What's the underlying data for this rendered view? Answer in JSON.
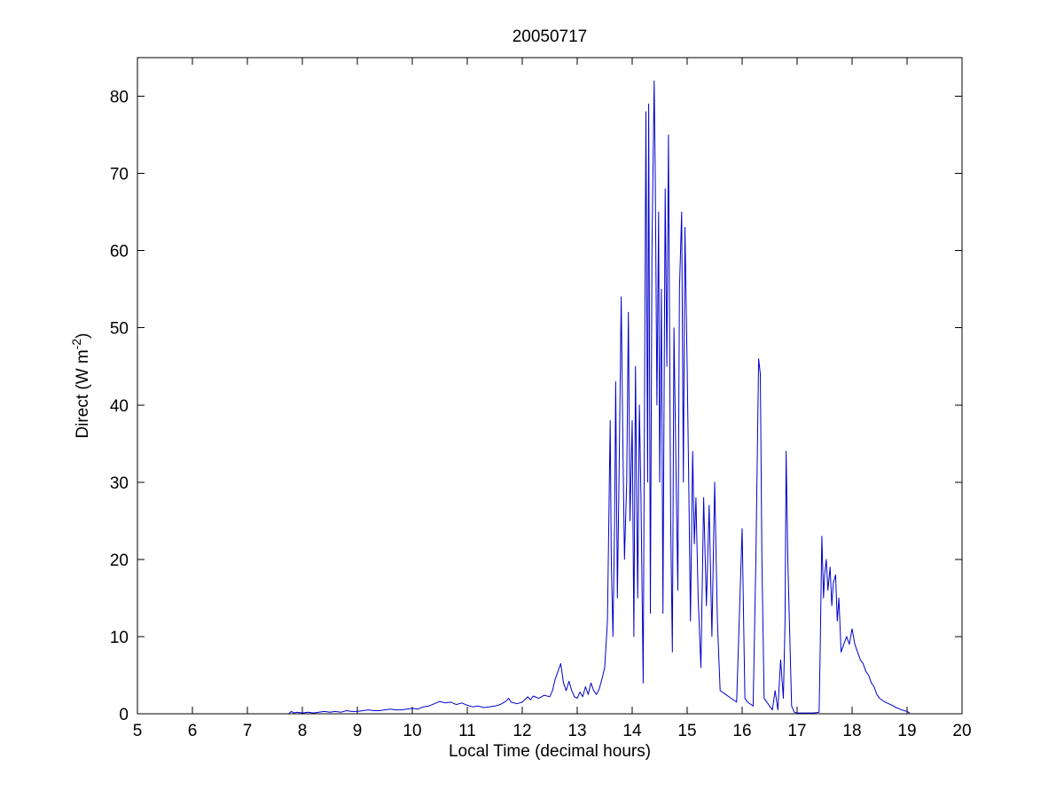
{
  "page": {
    "background_color": "#ffffff"
  },
  "chart_data": {
    "type": "line",
    "title": "20050717",
    "xlabel": "Local Time (decimal hours)",
    "ylabel": "Direct (W m⁻²)",
    "ylabel_parts": {
      "pre": "Direct (W m",
      "sup": "-2",
      "post": ")"
    },
    "xlim": [
      5,
      20
    ],
    "ylim": [
      0,
      85
    ],
    "xticks": [
      5,
      6,
      7,
      8,
      9,
      10,
      11,
      12,
      13,
      14,
      15,
      16,
      17,
      18,
      19,
      20
    ],
    "yticks": [
      0,
      10,
      20,
      30,
      40,
      50,
      60,
      70,
      80
    ],
    "grid": false,
    "legend": "none",
    "line_color": "#0000CC",
    "axis_color": "#000000",
    "points": [
      [
        7.75,
        0
      ],
      [
        7.8,
        0.3
      ],
      [
        7.85,
        0.1
      ],
      [
        7.9,
        0.2
      ],
      [
        8.0,
        0.1
      ],
      [
        8.1,
        0.2
      ],
      [
        8.2,
        0.1
      ],
      [
        8.3,
        0.2
      ],
      [
        8.4,
        0.3
      ],
      [
        8.5,
        0.2
      ],
      [
        8.6,
        0.3
      ],
      [
        8.7,
        0.2
      ],
      [
        8.8,
        0.4
      ],
      [
        8.9,
        0.3
      ],
      [
        9.0,
        0.3
      ],
      [
        9.1,
        0.4
      ],
      [
        9.2,
        0.5
      ],
      [
        9.3,
        0.4
      ],
      [
        9.4,
        0.4
      ],
      [
        9.5,
        0.5
      ],
      [
        9.6,
        0.6
      ],
      [
        9.7,
        0.5
      ],
      [
        9.8,
        0.5
      ],
      [
        9.9,
        0.6
      ],
      [
        10.0,
        0.7
      ],
      [
        10.1,
        0.6
      ],
      [
        10.2,
        0.9
      ],
      [
        10.3,
        1.0
      ],
      [
        10.4,
        1.3
      ],
      [
        10.5,
        1.6
      ],
      [
        10.6,
        1.4
      ],
      [
        10.7,
        1.5
      ],
      [
        10.8,
        1.2
      ],
      [
        10.9,
        1.4
      ],
      [
        11.0,
        1.1
      ],
      [
        11.1,
        0.9
      ],
      [
        11.2,
        1.0
      ],
      [
        11.3,
        0.8
      ],
      [
        11.4,
        0.9
      ],
      [
        11.5,
        1.0
      ],
      [
        11.6,
        1.2
      ],
      [
        11.7,
        1.6
      ],
      [
        11.75,
        2.0
      ],
      [
        11.8,
        1.5
      ],
      [
        11.9,
        1.3
      ],
      [
        12.0,
        1.5
      ],
      [
        12.1,
        2.2
      ],
      [
        12.15,
        1.8
      ],
      [
        12.2,
        2.3
      ],
      [
        12.3,
        2.0
      ],
      [
        12.4,
        2.4
      ],
      [
        12.5,
        2.2
      ],
      [
        12.55,
        3.0
      ],
      [
        12.6,
        4.5
      ],
      [
        12.65,
        5.5
      ],
      [
        12.7,
        6.5
      ],
      [
        12.75,
        4.0
      ],
      [
        12.8,
        3.0
      ],
      [
        12.85,
        4.2
      ],
      [
        12.9,
        3.0
      ],
      [
        12.95,
        2.2
      ],
      [
        13.0,
        2.0
      ],
      [
        13.05,
        2.8
      ],
      [
        13.1,
        2.2
      ],
      [
        13.15,
        3.5
      ],
      [
        13.2,
        2.5
      ],
      [
        13.25,
        4.0
      ],
      [
        13.3,
        3.0
      ],
      [
        13.35,
        2.5
      ],
      [
        13.4,
        3.2
      ],
      [
        13.45,
        4.5
      ],
      [
        13.5,
        6.0
      ],
      [
        13.55,
        12
      ],
      [
        13.6,
        38
      ],
      [
        13.62,
        20
      ],
      [
        13.65,
        10
      ],
      [
        13.68,
        25
      ],
      [
        13.7,
        43
      ],
      [
        13.73,
        15
      ],
      [
        13.76,
        30
      ],
      [
        13.8,
        54
      ],
      [
        13.83,
        35
      ],
      [
        13.86,
        20
      ],
      [
        13.9,
        30
      ],
      [
        13.93,
        52
      ],
      [
        13.96,
        25
      ],
      [
        14.0,
        38
      ],
      [
        14.03,
        10
      ],
      [
        14.06,
        45
      ],
      [
        14.1,
        15
      ],
      [
        14.13,
        40
      ],
      [
        14.16,
        28
      ],
      [
        14.2,
        4
      ],
      [
        14.23,
        50
      ],
      [
        14.25,
        78
      ],
      [
        14.28,
        30
      ],
      [
        14.3,
        79
      ],
      [
        14.33,
        13
      ],
      [
        14.36,
        60
      ],
      [
        14.4,
        82
      ],
      [
        14.42,
        70
      ],
      [
        14.45,
        40
      ],
      [
        14.48,
        65
      ],
      [
        14.5,
        30
      ],
      [
        14.53,
        55
      ],
      [
        14.56,
        13
      ],
      [
        14.6,
        68
      ],
      [
        14.63,
        45
      ],
      [
        14.66,
        75
      ],
      [
        14.7,
        25
      ],
      [
        14.73,
        8
      ],
      [
        14.76,
        50
      ],
      [
        14.8,
        30
      ],
      [
        14.83,
        16
      ],
      [
        14.86,
        55
      ],
      [
        14.9,
        65
      ],
      [
        14.93,
        30
      ],
      [
        14.96,
        63
      ],
      [
        15.0,
        45
      ],
      [
        15.03,
        29
      ],
      [
        15.06,
        12
      ],
      [
        15.1,
        34
      ],
      [
        15.13,
        22
      ],
      [
        15.16,
        28
      ],
      [
        15.2,
        15
      ],
      [
        15.25,
        6
      ],
      [
        15.3,
        28
      ],
      [
        15.35,
        14
      ],
      [
        15.4,
        27
      ],
      [
        15.45,
        10
      ],
      [
        15.5,
        30
      ],
      [
        15.55,
        12
      ],
      [
        15.6,
        3
      ],
      [
        15.7,
        2.5
      ],
      [
        15.8,
        2.0
      ],
      [
        15.9,
        1.5
      ],
      [
        16.0,
        24
      ],
      [
        16.05,
        2
      ],
      [
        16.1,
        1.5
      ],
      [
        16.2,
        1.0
      ],
      [
        16.25,
        20
      ],
      [
        16.3,
        46
      ],
      [
        16.33,
        44
      ],
      [
        16.36,
        20
      ],
      [
        16.4,
        2
      ],
      [
        16.5,
        1
      ],
      [
        16.55,
        0.5
      ],
      [
        16.6,
        3
      ],
      [
        16.65,
        0.5
      ],
      [
        16.7,
        7
      ],
      [
        16.75,
        2
      ],
      [
        16.78,
        12
      ],
      [
        16.8,
        34
      ],
      [
        16.83,
        20
      ],
      [
        16.86,
        12
      ],
      [
        16.9,
        1
      ],
      [
        16.95,
        0.2
      ],
      [
        17.0,
        0.1
      ],
      [
        17.1,
        0.1
      ],
      [
        17.2,
        0.1
      ],
      [
        17.3,
        0.1
      ],
      [
        17.4,
        0.2
      ],
      [
        17.42,
        8
      ],
      [
        17.45,
        23
      ],
      [
        17.48,
        15
      ],
      [
        17.5,
        18
      ],
      [
        17.53,
        20
      ],
      [
        17.56,
        16
      ],
      [
        17.6,
        19
      ],
      [
        17.63,
        14
      ],
      [
        17.66,
        17
      ],
      [
        17.7,
        18
      ],
      [
        17.73,
        12
      ],
      [
        17.76,
        15
      ],
      [
        17.8,
        8
      ],
      [
        17.85,
        9
      ],
      [
        17.9,
        10
      ],
      [
        17.95,
        9
      ],
      [
        18.0,
        11
      ],
      [
        18.05,
        9
      ],
      [
        18.1,
        8
      ],
      [
        18.15,
        7
      ],
      [
        18.2,
        6.5
      ],
      [
        18.25,
        5.5
      ],
      [
        18.3,
        5
      ],
      [
        18.35,
        4
      ],
      [
        18.4,
        3.5
      ],
      [
        18.45,
        2.5
      ],
      [
        18.5,
        2
      ],
      [
        18.6,
        1.5
      ],
      [
        18.7,
        1.2
      ],
      [
        18.8,
        0.8
      ],
      [
        18.9,
        0.5
      ],
      [
        19.0,
        0.3
      ],
      [
        19.05,
        0.1
      ]
    ]
  }
}
